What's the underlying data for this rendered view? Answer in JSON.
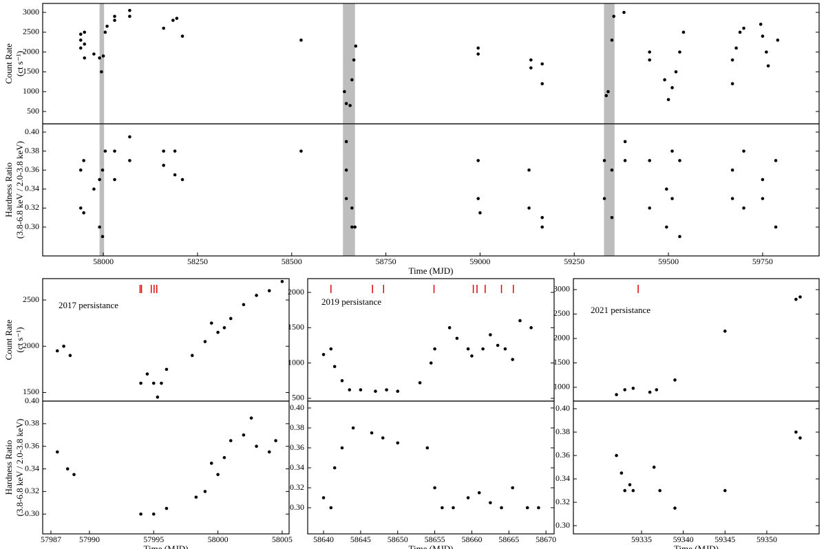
{
  "chart_data": [
    {
      "type": "scatter",
      "color": "#000000",
      "ylabel": [
        "Count Rate",
        "(ct s⁻¹)"
      ],
      "xlim": [
        57839,
        59900
      ],
      "ylim": [
        188,
        3226
      ],
      "yticks": [
        500,
        1000,
        1500,
        2000,
        2500,
        3000
      ],
      "spans": [
        [
          57990,
          58002
        ],
        [
          58636,
          58668
        ],
        [
          59329,
          59357
        ]
      ],
      "span_color": "#bdbdbd",
      "x": [
        57940,
        57940,
        57940,
        57950,
        57950,
        57950,
        57975,
        57990,
        57995,
        58000,
        58005,
        58010,
        58030,
        58030,
        58070,
        58070,
        58160,
        58185,
        58195,
        58210,
        58525,
        58640,
        58645,
        58655,
        58660,
        58665,
        58670,
        58995,
        58995,
        59135,
        59135,
        59165,
        59165,
        59335,
        59340,
        59350,
        59355,
        59382,
        59450,
        59450,
        59490,
        59500,
        59510,
        59520,
        59530,
        59540,
        59670,
        59670,
        59680,
        59690,
        59700,
        59745,
        59750,
        59760,
        59765,
        59790
      ],
      "y": [
        2100,
        2300,
        2450,
        2500,
        2200,
        1850,
        1950,
        1850,
        1500,
        1900,
        2500,
        2650,
        2800,
        2900,
        2900,
        3050,
        2600,
        2800,
        2850,
        2400,
        2300,
        1000,
        700,
        650,
        1300,
        1800,
        2150,
        2100,
        1950,
        1800,
        1600,
        1700,
        1200,
        900,
        1000,
        2300,
        2900,
        3000,
        1800,
        2000,
        1300,
        800,
        1100,
        1500,
        2000,
        2500,
        1200,
        1800,
        2100,
        2500,
        2600,
        2700,
        2400,
        2000,
        1650,
        2300
      ]
    },
    {
      "type": "scatter",
      "color": "#000000",
      "ylabel": [
        "Hardness Ratio",
        "(3.8-6.8 keV / 2.0-3.8 keV)"
      ],
      "xlabel": "Time (MJD)",
      "xlim": [
        57839,
        59900
      ],
      "ylim": [
        0.2696,
        0.4087
      ],
      "xticks": [
        58000,
        58250,
        58500,
        58750,
        59000,
        59250,
        59500,
        59750
      ],
      "yticks": [
        {
          "value": 0.3,
          "label": "0.30"
        },
        {
          "value": 0.32,
          "label": "0.32"
        },
        {
          "value": 0.34,
          "label": "0.34"
        },
        {
          "value": 0.36,
          "label": "0.36"
        },
        {
          "value": 0.38,
          "label": "0.38"
        },
        {
          "value": 0.4,
          "label": "0.40"
        }
      ],
      "spans": [
        [
          57990,
          58002
        ],
        [
          58636,
          58668
        ],
        [
          59329,
          59357
        ]
      ],
      "span_color": "#bdbdbd",
      "x": [
        57940,
        57940,
        57948,
        57948,
        57975,
        57990,
        57990,
        57998,
        57998,
        58005,
        58030,
        58030,
        58070,
        58070,
        58160,
        58160,
        58190,
        58190,
        58210,
        58525,
        58645,
        58645,
        58645,
        58660,
        58660,
        58668,
        58995,
        58995,
        59000,
        59130,
        59130,
        59165,
        59165,
        59330,
        59330,
        59350,
        59350,
        59385,
        59385,
        59450,
        59450,
        59495,
        59495,
        59510,
        59510,
        59530,
        59530,
        59670,
        59670,
        59700,
        59700,
        59750,
        59750,
        59785,
        59785
      ],
      "y": [
        0.32,
        0.36,
        0.37,
        0.315,
        0.34,
        0.35,
        0.3,
        0.29,
        0.36,
        0.38,
        0.35,
        0.38,
        0.37,
        0.395,
        0.38,
        0.365,
        0.38,
        0.355,
        0.35,
        0.38,
        0.39,
        0.36,
        0.33,
        0.3,
        0.32,
        0.3,
        0.37,
        0.33,
        0.315,
        0.36,
        0.32,
        0.31,
        0.3,
        0.37,
        0.33,
        0.31,
        0.36,
        0.39,
        0.37,
        0.37,
        0.32,
        0.3,
        0.34,
        0.38,
        0.33,
        0.29,
        0.37,
        0.36,
        0.33,
        0.38,
        0.32,
        0.35,
        0.33,
        0.37,
        0.3
      ]
    },
    {
      "type": "scatter",
      "color": "#000000",
      "ylabel": [
        "Count Rate",
        "(ct s⁻¹)"
      ],
      "annotation": "2017 persistance",
      "xlim": [
        57986.36,
        58005.54
      ],
      "ylim": [
        1407,
        2731
      ],
      "yticks": [
        1500,
        2000,
        2500
      ],
      "markers": [
        57993.94,
        57994.05,
        57994.81,
        57995.03,
        57995.24
      ],
      "marker_color": "#e00000",
      "x": [
        57987.5,
        57988,
        57988.5,
        57994,
        57994.5,
        57995,
        57995.3,
        57995.6,
        57996,
        57998,
        57999,
        57999.5,
        58000,
        58000.5,
        58001,
        58002,
        58003,
        58004,
        58005
      ],
      "y": [
        1950,
        2000,
        1900,
        1600,
        1700,
        1600,
        1450,
        1600,
        1750,
        1900,
        2050,
        2250,
        2150,
        2200,
        2300,
        2450,
        2550,
        2600,
        2700
      ]
    },
    {
      "type": "scatter",
      "color": "#000000",
      "ylabel": [
        "Hardness Ratio",
        "(3.8-6.8 keV / 2.0-3.8 keV)"
      ],
      "xlabel": "Time (MJD)",
      "xlim": [
        57986.36,
        58005.54
      ],
      "ylim": [
        0.2825,
        0.4
      ],
      "xticks": [
        57987,
        57990,
        57995,
        58000,
        58005
      ],
      "yticks": [
        {
          "value": 0.3,
          "label": "0.30"
        },
        {
          "value": 0.32,
          "label": "0.32"
        },
        {
          "value": 0.34,
          "label": "0.34"
        },
        {
          "value": 0.36,
          "label": "0.36"
        },
        {
          "value": 0.38,
          "label": "0.38"
        },
        {
          "value": 0.4,
          "label": "0.40"
        }
      ],
      "x": [
        57987.5,
        57988.3,
        57988.8,
        57994,
        57995,
        57996,
        57998.3,
        57999,
        57999.5,
        58000,
        58000.5,
        58001,
        58002,
        58002.6,
        58003,
        58004,
        58004.5
      ],
      "y": [
        0.355,
        0.34,
        0.335,
        0.3,
        0.3,
        0.305,
        0.315,
        0.32,
        0.345,
        0.335,
        0.35,
        0.365,
        0.37,
        0.385,
        0.36,
        0.355,
        0.365
      ]
    },
    {
      "type": "scatter",
      "color": "#000000",
      "annotation": "2019 persistance",
      "xlim": [
        58637.86,
        58671.1
      ],
      "ylim": [
        461,
        2195
      ],
      "yticks": [
        500,
        1000,
        1500,
        2000
      ],
      "markers": [
        58641.0,
        58646.6,
        58648.1,
        58654.9,
        58660.2,
        58660.7,
        58661.8,
        58664.0,
        58665.6
      ],
      "marker_color": "#e00000",
      "x": [
        58640,
        58641,
        58641.5,
        58642.5,
        58643.5,
        58645,
        58647,
        58648.5,
        58650,
        58653,
        58654.5,
        58655,
        58657,
        58658,
        58659.5,
        58660,
        58661.5,
        58662.5,
        58663.5,
        58664.5,
        58665.5,
        58666.5,
        58668
      ],
      "y": [
        1120,
        1200,
        950,
        750,
        620,
        620,
        600,
        620,
        600,
        720,
        1000,
        1200,
        1500,
        1350,
        1200,
        1100,
        1200,
        1400,
        1250,
        1200,
        1050,
        1600,
        1500
      ]
    },
    {
      "type": "scatter",
      "color": "#000000",
      "xlabel": "Time (MJD)",
      "xlim": [
        58637.86,
        58671.1
      ],
      "ylim": [
        0.2738,
        0.4069
      ],
      "xticks": [
        58640,
        58645,
        58650,
        58655,
        58660,
        58665,
        58670
      ],
      "yticks": [
        {
          "value": 0.3,
          "label": "0.30"
        },
        {
          "value": 0.32,
          "label": "0.32"
        },
        {
          "value": 0.34,
          "label": "0.34"
        },
        {
          "value": 0.36,
          "label": "0.36"
        },
        {
          "value": 0.38,
          "label": "0.38"
        },
        {
          "value": 0.4,
          "label": "0.40"
        }
      ],
      "x": [
        58640,
        58641,
        58641.5,
        58642.5,
        58644,
        58646.5,
        58648,
        58650,
        58654,
        58655,
        58656,
        58657.5,
        58659.5,
        58661,
        58662.5,
        58664,
        58665.5,
        58667.5,
        58669
      ],
      "y": [
        0.31,
        0.3,
        0.34,
        0.36,
        0.38,
        0.375,
        0.37,
        0.365,
        0.36,
        0.32,
        0.3,
        0.3,
        0.31,
        0.315,
        0.305,
        0.3,
        0.32,
        0.3,
        0.3
      ]
    },
    {
      "type": "scatter",
      "color": "#000000",
      "annotation": "2021 persistance",
      "xlim": [
        59326.84,
        59356.27
      ],
      "ylim": [
        718,
        3225
      ],
      "yticks": [
        1000,
        1500,
        2000,
        2500,
        3000
      ],
      "markers": [
        59334.6
      ],
      "marker_color": "#e00000",
      "x": [
        59332,
        59333,
        59334,
        59336,
        59336.8,
        59339,
        59345,
        59353.5,
        59354
      ],
      "y": [
        850,
        950,
        980,
        900,
        950,
        1150,
        2150,
        2800,
        2850
      ]
    },
    {
      "type": "scatter",
      "color": "#000000",
      "xlabel": "Time (MJD)",
      "xlim": [
        59326.84,
        59356.27
      ],
      "ylim": [
        0.293,
        0.4065
      ],
      "xticks": [
        59335,
        59340,
        59345,
        59350
      ],
      "yticks": [
        {
          "value": 0.3,
          "label": "0.30"
        },
        {
          "value": 0.32,
          "label": "0.32"
        },
        {
          "value": 0.34,
          "label": "0.34"
        },
        {
          "value": 0.36,
          "label": "0.36"
        },
        {
          "value": 0.38,
          "label": "0.38"
        },
        {
          "value": 0.4,
          "label": "0.40"
        }
      ],
      "x": [
        59332,
        59332.6,
        59333,
        59333.6,
        59334,
        59336.5,
        59337.2,
        59339,
        59345,
        59353.5,
        59354
      ],
      "y": [
        0.36,
        0.345,
        0.33,
        0.335,
        0.33,
        0.35,
        0.33,
        0.315,
        0.33,
        0.38,
        0.375
      ]
    }
  ]
}
